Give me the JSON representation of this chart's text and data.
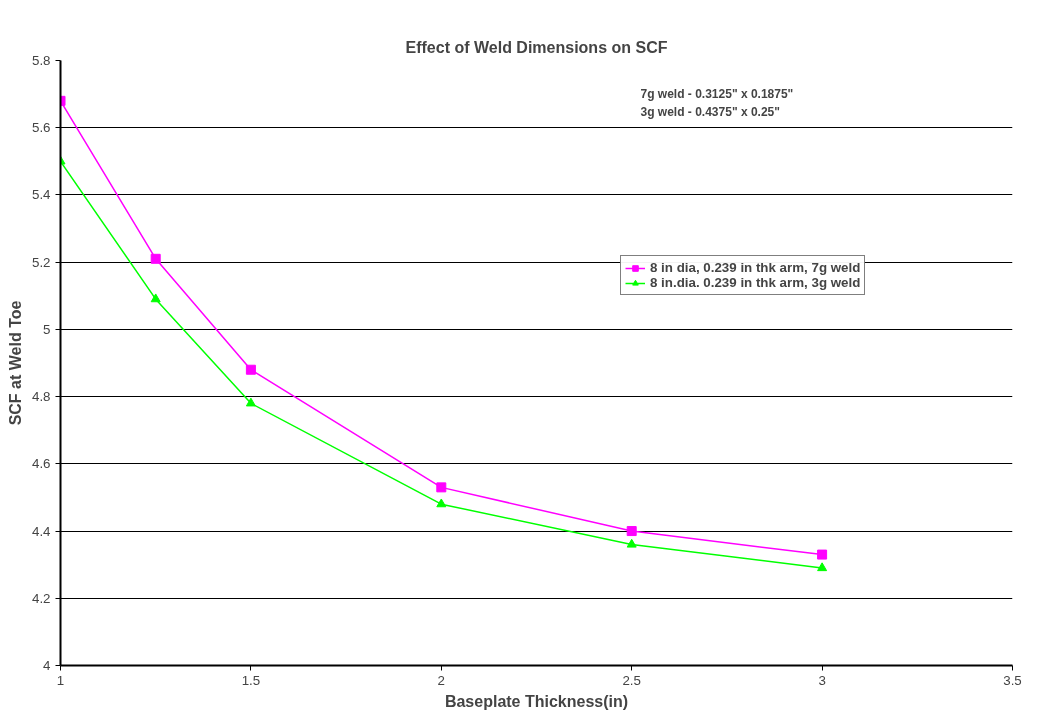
{
  "chart_data": {
    "type": "line",
    "title": "Effect of Weld Dimensions on SCF",
    "xlabel": "Baseplate Thickness(in)",
    "ylabel": "SCF at Weld Toe",
    "annotations": [
      "7g weld - 0.3125\" x 0.1875\"",
      "3g weld - 0.4375\" x 0.25\""
    ],
    "x": [
      1,
      1.25,
      1.5,
      2,
      2.5,
      3
    ],
    "series": [
      {
        "name": "8 in dia, 0.239 in thk arm, 7g weld",
        "color": "#ff00ff",
        "marker": "square",
        "values": [
          5.68,
          5.21,
          4.88,
          4.53,
          4.4,
          4.33
        ]
      },
      {
        "name": "8 in.dia. 0.239 in thk arm, 3g weld",
        "color": "#00ff00",
        "marker": "triangle",
        "values": [
          5.5,
          5.09,
          4.78,
          4.48,
          4.36,
          4.29
        ]
      }
    ],
    "xlim": [
      1,
      3.5
    ],
    "xticks": [
      1,
      1.5,
      2,
      2.5,
      3,
      3.5
    ],
    "ylim": [
      4,
      5.8
    ],
    "yticks": [
      4,
      4.2,
      4.4,
      4.6,
      4.8,
      5,
      5.2,
      5.4,
      5.6,
      5.8
    ],
    "grid": "y",
    "legend": "right",
    "line_style": "solid"
  }
}
